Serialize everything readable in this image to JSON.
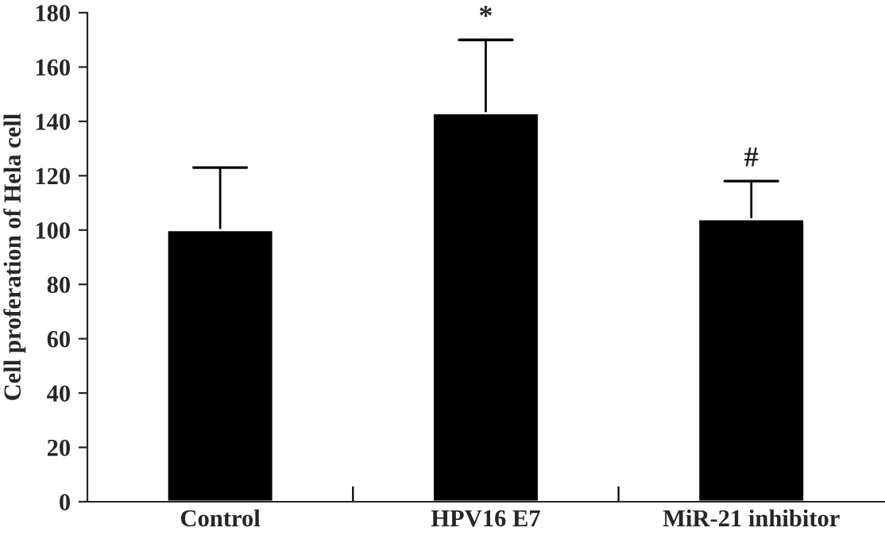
{
  "chart_data": {
    "type": "bar",
    "ylabel": "Cell proferation of Hela cell",
    "categories": [
      "Control",
      "HPV16 E7",
      "MiR-21 inhibitor"
    ],
    "values": [
      100,
      143,
      104
    ],
    "errors": [
      [
        100,
        123
      ],
      [
        143,
        170
      ],
      [
        104,
        118
      ]
    ],
    "color": "#000000",
    "ylim": [
      0,
      180
    ],
    "yticks": [
      0,
      20,
      40,
      60,
      80,
      100,
      120,
      140,
      160,
      180
    ],
    "grid": false,
    "annotations": [
      "*",
      "#"
    ]
  }
}
